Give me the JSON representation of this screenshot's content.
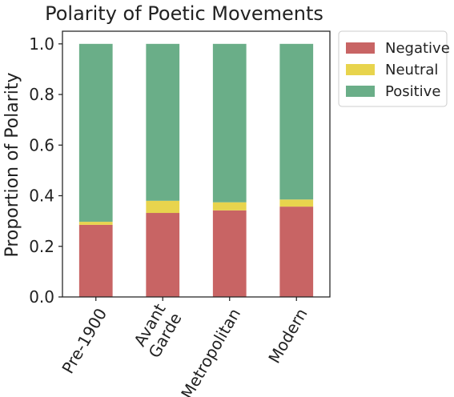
{
  "chart_data": {
    "type": "bar",
    "stacked": true,
    "title": "Polarity of Poetic Movements",
    "xlabel": "",
    "ylabel": "Proportion of Polarity",
    "ylim": [
      0,
      1.05
    ],
    "yticks": [
      "0.0",
      "0.2",
      "0.4",
      "0.6",
      "0.8",
      "1.0"
    ],
    "ytick_values": [
      0,
      0.2,
      0.4,
      0.6,
      0.8,
      1.0
    ],
    "categories": [
      [
        "Pre-1900"
      ],
      [
        "Avant",
        "Garde"
      ],
      [
        "Metropolitan"
      ],
      [
        "Modern"
      ]
    ],
    "series": [
      {
        "name": "Negative",
        "color": "#c86464",
        "values": [
          0.285,
          0.332,
          0.342,
          0.357
        ]
      },
      {
        "name": "Neutral",
        "color": "#e8d44d",
        "values": [
          0.012,
          0.048,
          0.032,
          0.028
        ]
      },
      {
        "name": "Positive",
        "color": "#6aae88",
        "values": [
          0.703,
          0.62,
          0.626,
          0.615
        ]
      }
    ],
    "legend_position": "outside-top-right",
    "grid": false
  }
}
